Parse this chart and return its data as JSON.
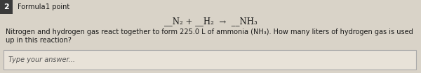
{
  "question_number": "2",
  "label_type": "Formula",
  "points": "1 point",
  "formula_line": "__N₂ + __H₂  →  __NH₃",
  "body_text": "Nitrogen and hydrogen gas react together to form 225.0 L of ammonia (NH₃). How many liters of hydrogen gas is used up in this reaction?",
  "placeholder": "Type your answer...",
  "bg_color": "#d9d3c8",
  "header_bg": "#c8c2b6",
  "number_bg": "#3a3a3a",
  "box_bg": "#e8e2d8",
  "text_color": "#1a1a1a",
  "placeholder_color": "#555555",
  "number_color": "#ffffff"
}
